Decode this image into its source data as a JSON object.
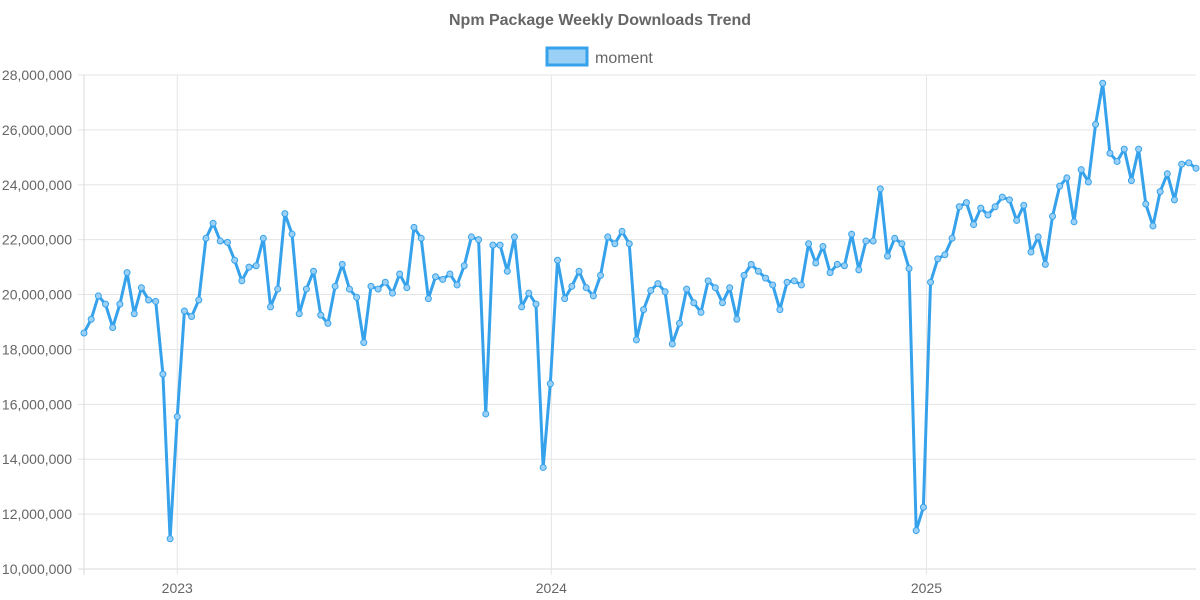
{
  "chart_data": {
    "type": "line",
    "title": "Npm Package Weekly Downloads Trend",
    "legend_position": "top-center",
    "grid": true,
    "x_axis_type": "time",
    "xlim": [
      "2022-10-02",
      "2025-09-21"
    ],
    "x_tick_labels": [
      "2023",
      "2024",
      "2025"
    ],
    "x_tick_dates": [
      "2023-01-01",
      "2024-01-01",
      "2025-01-01"
    ],
    "ylim": [
      10000000,
      28000000
    ],
    "y_ticks": [
      10000000,
      12000000,
      14000000,
      16000000,
      18000000,
      20000000,
      22000000,
      24000000,
      26000000,
      28000000
    ],
    "y_tick_labels": [
      "10,000,000",
      "12,000,000",
      "14,000,000",
      "16,000,000",
      "18,000,000",
      "20,000,000",
      "22,000,000",
      "24,000,000",
      "26,000,000",
      "28,000,000"
    ],
    "x_start_date": "2022-10-02",
    "x_interval_days": 7,
    "series": [
      {
        "name": "moment",
        "color": "#36a2eb",
        "fill_color": "#9ad0f5",
        "values": [
          18600000,
          19100000,
          19950000,
          19650000,
          18800000,
          19650000,
          20800000,
          19300000,
          20250000,
          19800000,
          19750000,
          17100000,
          11100000,
          15550000,
          19400000,
          19200000,
          19800000,
          22050000,
          22600000,
          21950000,
          21900000,
          21250000,
          20500000,
          21000000,
          21050000,
          22050000,
          19550000,
          20200000,
          22950000,
          22200000,
          19300000,
          20200000,
          20850000,
          19250000,
          18950000,
          20300000,
          21100000,
          20200000,
          19900000,
          18250000,
          20300000,
          20200000,
          20450000,
          20050000,
          20750000,
          20250000,
          22450000,
          22050000,
          19850000,
          20650000,
          20550000,
          20750000,
          20350000,
          21050000,
          22100000,
          22000000,
          15650000,
          21800000,
          21800000,
          20850000,
          22100000,
          19550000,
          20050000,
          19650000,
          13700000,
          16750000,
          21250000,
          19850000,
          20300000,
          20850000,
          20250000,
          19950000,
          20700000,
          22100000,
          21850000,
          22300000,
          21850000,
          18350000,
          19450000,
          20150000,
          20400000,
          20100000,
          18200000,
          18950000,
          20200000,
          19700000,
          19350000,
          20500000,
          20250000,
          19700000,
          20250000,
          19100000,
          20700000,
          21100000,
          20850000,
          20600000,
          20350000,
          19450000,
          20450000,
          20500000,
          20350000,
          21850000,
          21150000,
          21750000,
          20800000,
          21100000,
          21050000,
          22200000,
          20900000,
          21950000,
          21950000,
          23850000,
          21400000,
          22050000,
          21850000,
          20950000,
          11400000,
          12250000,
          20450000,
          21300000,
          21450000,
          22050000,
          23200000,
          23350000,
          22550000,
          23150000,
          22900000,
          23200000,
          23550000,
          23450000,
          22700000,
          23250000,
          21550000,
          22100000,
          21100000,
          22850000,
          23950000,
          24250000,
          22650000,
          24550000,
          24100000,
          26200000,
          27700000,
          25150000,
          24850000,
          25300000,
          24150000,
          25300000,
          23300000,
          22500000,
          23750000,
          24400000,
          23450000,
          24750000,
          24800000,
          24600000
        ]
      }
    ]
  }
}
